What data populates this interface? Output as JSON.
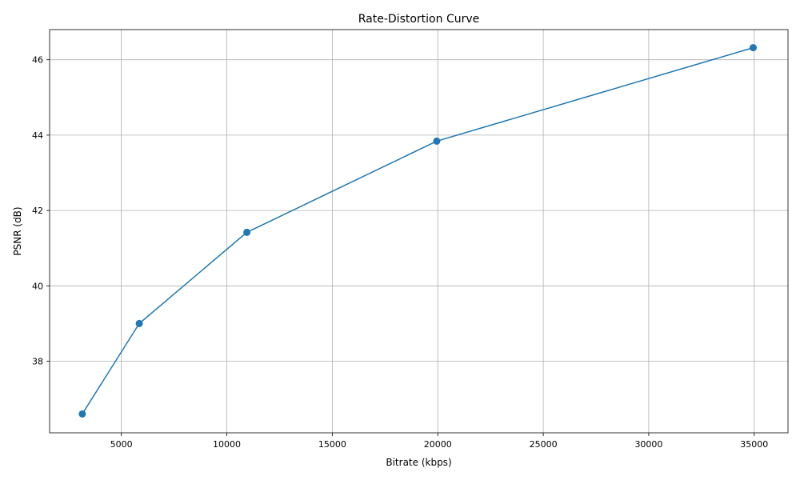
{
  "chart_data": {
    "type": "line",
    "title": "Rate-Distortion Curve",
    "xlabel": "Bitrate (kbps)",
    "ylabel": "PSNR (dB)",
    "xlim": [
      1600,
      36600
    ],
    "ylim": [
      36.1,
      46.8
    ],
    "xticks": [
      5000,
      10000,
      15000,
      20000,
      25000,
      30000,
      35000
    ],
    "yticks": [
      38,
      40,
      42,
      44,
      46
    ],
    "grid": true,
    "series": [
      {
        "color": "#1f77b4",
        "marker": "circle",
        "x": [
          3150,
          5850,
          10950,
          19950,
          34950
        ],
        "y": [
          36.6,
          39.0,
          41.42,
          43.84,
          46.32
        ]
      }
    ]
  }
}
